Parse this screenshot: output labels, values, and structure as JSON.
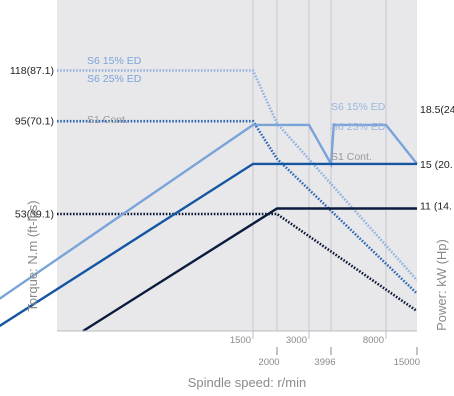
{
  "chart_data": {
    "type": "line",
    "xlabel": "Spindle speed: r/min",
    "ylabel_left": "Torque: N.m (ft-lbs)",
    "ylabel_right": "Power: kW (Hp)",
    "x_ticks_upper": [
      "1500",
      "3000",
      "8000"
    ],
    "x_ticks_lower": [
      "2000",
      "3996",
      "15000"
    ],
    "torque_ticks": [
      "118(87.1)",
      "95(70.1)",
      "53(39.1)"
    ],
    "power_ticks": [
      "18.5(24",
      "15 (20.",
      "11 (14."
    ],
    "series": [
      {
        "name": "S6 15% ED",
        "axis": "torque",
        "style": "dotted",
        "color": "#8fb2df",
        "points": [
          [
            0,
            118
          ],
          [
            1500,
            118
          ],
          [
            2000,
            94
          ],
          [
            15000,
            23
          ]
        ]
      },
      {
        "name": "S6 25% ED",
        "axis": "torque",
        "style": "dotted",
        "color": "#2c68b3",
        "points": [
          [
            0,
            95
          ],
          [
            1500,
            95
          ],
          [
            2000,
            78
          ],
          [
            15000,
            17
          ]
        ]
      },
      {
        "name": "S1 Cont.",
        "axis": "torque",
        "style": "dotted",
        "color": "#0b1836",
        "points": [
          [
            0,
            53
          ],
          [
            2000,
            53
          ],
          [
            15000,
            9
          ]
        ]
      },
      {
        "name": "S6 15% ED",
        "axis": "power",
        "style": "solid",
        "color": "#7aa3d9",
        "points": [
          [
            -800,
            0
          ],
          [
            1500,
            18.5
          ],
          [
            3000,
            18.5
          ],
          [
            3996,
            15
          ],
          [
            4200,
            18.5
          ],
          [
            8000,
            18.5
          ],
          [
            15000,
            15
          ]
        ]
      },
      {
        "name": "S6 25% ED",
        "axis": "power",
        "style": "solid",
        "color": "#1556a3",
        "points": [
          [
            -500,
            0
          ],
          [
            1500,
            15
          ],
          [
            15000,
            15
          ]
        ]
      },
      {
        "name": "S1 Cont.",
        "axis": "power",
        "style": "solid",
        "color": "#0b1b3d",
        "points": [
          [
            200,
            0
          ],
          [
            2000,
            11
          ],
          [
            15000,
            11
          ]
        ]
      }
    ],
    "torque_labels": [
      "S6 15% ED",
      "S6 25% ED",
      "S1 Cont."
    ],
    "power_labels": [
      "S6 15% ED",
      "S6 25% ED",
      "S1 Cont."
    ],
    "grid": true,
    "background_color": "#e8e8eb"
  }
}
